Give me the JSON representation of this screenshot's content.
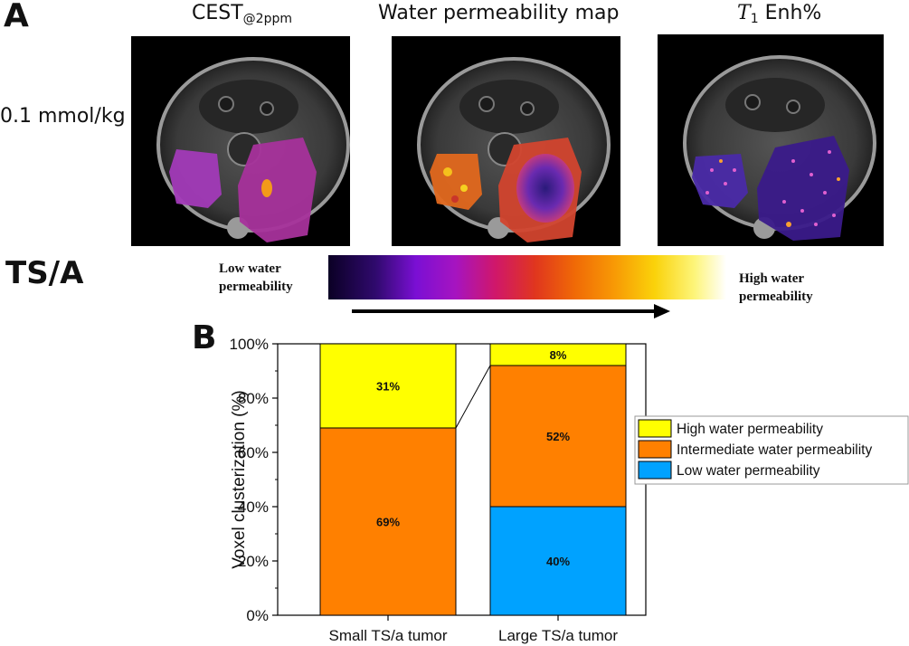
{
  "panel_a": {
    "letter": "A",
    "titles": {
      "cest": "CEST",
      "cest_sub": "@2ppm",
      "water_map": "Water permeability map",
      "t1_var": "T",
      "t1_sub": "1",
      "t1_rest": " Enh%"
    },
    "dose": "0.1 mmol/kg",
    "model": "TS/A",
    "colorbar": {
      "low_line1": "Low water",
      "low_line2": "permeability",
      "high_line1": "High water",
      "high_line2": "permeability"
    }
  },
  "panel_b": {
    "letter": "B"
  },
  "colors": {
    "high": "#ffff00",
    "intermediate": "#ff8000",
    "low": "#00a2ff"
  },
  "chart_data": {
    "type": "bar",
    "stacked": true,
    "normalized": true,
    "categories": [
      "Small TS/a tumor",
      "Large TS/a tumor"
    ],
    "series": [
      {
        "name": "Low water permeability",
        "values": [
          0,
          40
        ],
        "labels": [
          "",
          "40%"
        ],
        "color": "#00a2ff"
      },
      {
        "name": "Intermediate water permeability",
        "values": [
          69,
          52
        ],
        "labels": [
          "69%",
          "52%"
        ],
        "color": "#ff8000"
      },
      {
        "name": "High water permeability",
        "values": [
          31,
          8
        ],
        "labels": [
          "31%",
          "8%"
        ],
        "color": "#ffff00"
      }
    ],
    "legend_order": [
      "High water permeability",
      "Intermediate water permeability",
      "Low water permeability"
    ],
    "ylabel": "Voxel clusterization (%)",
    "xlabel": "",
    "ylim": [
      0,
      100
    ],
    "yticks": [
      "0%",
      "20%",
      "40%",
      "60%",
      "80%",
      "100%"
    ],
    "grid": false,
    "legend_position": "right"
  }
}
